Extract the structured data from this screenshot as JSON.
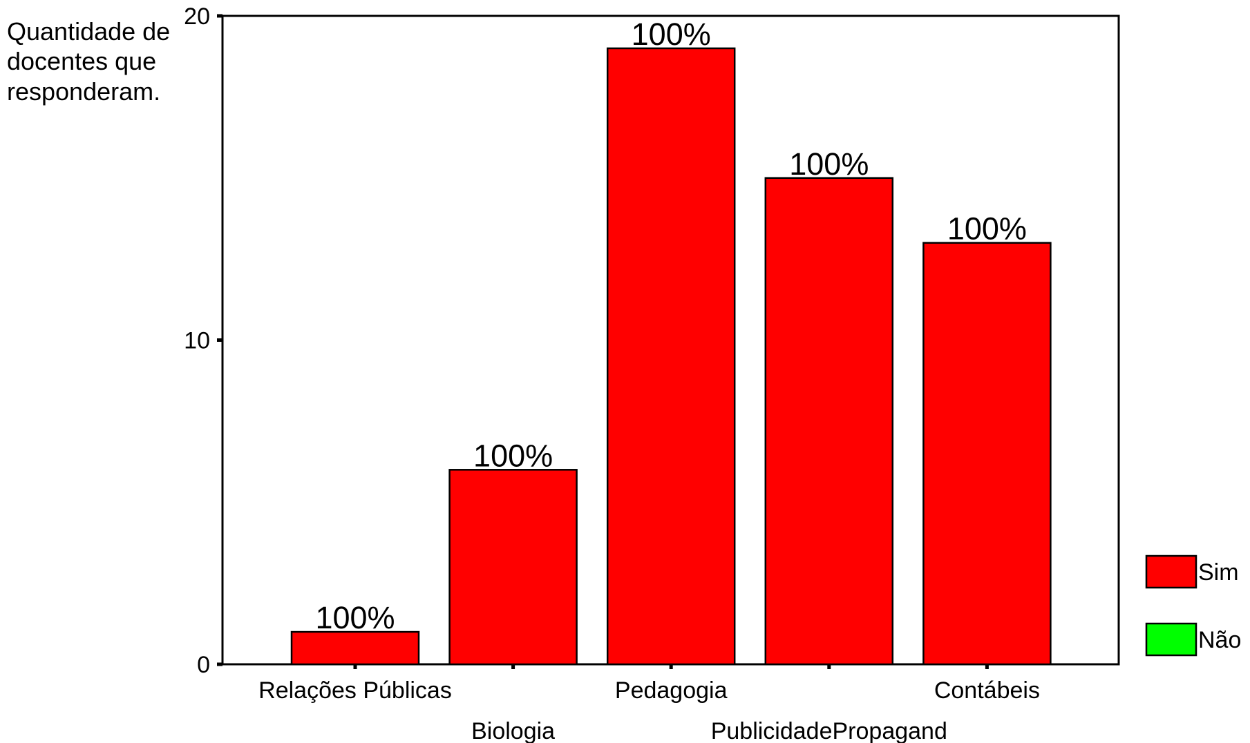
{
  "chart_data": {
    "type": "bar",
    "ylabel": "Quantidade de docentes que responderam.",
    "ylabel_lines": [
      "Quantidade de",
      "docentes que",
      "responderam."
    ],
    "xlabel": "",
    "ylim": [
      0,
      20
    ],
    "yticks": [
      0,
      10,
      20
    ],
    "categories": [
      "Relações Públicas",
      "Biologia",
      "Pedagogia",
      "PublicidadePropagand",
      "Contábeis"
    ],
    "series": [
      {
        "name": "Sim",
        "color": "#ff0000",
        "values": [
          1,
          6,
          19,
          15,
          13
        ],
        "labels": [
          "100%",
          "100%",
          "100%",
          "100%",
          "100%"
        ]
      },
      {
        "name": "Não",
        "color": "#00ff00",
        "values": [
          0,
          0,
          0,
          0,
          0
        ]
      }
    ],
    "legend_position": "right",
    "grid": false
  }
}
